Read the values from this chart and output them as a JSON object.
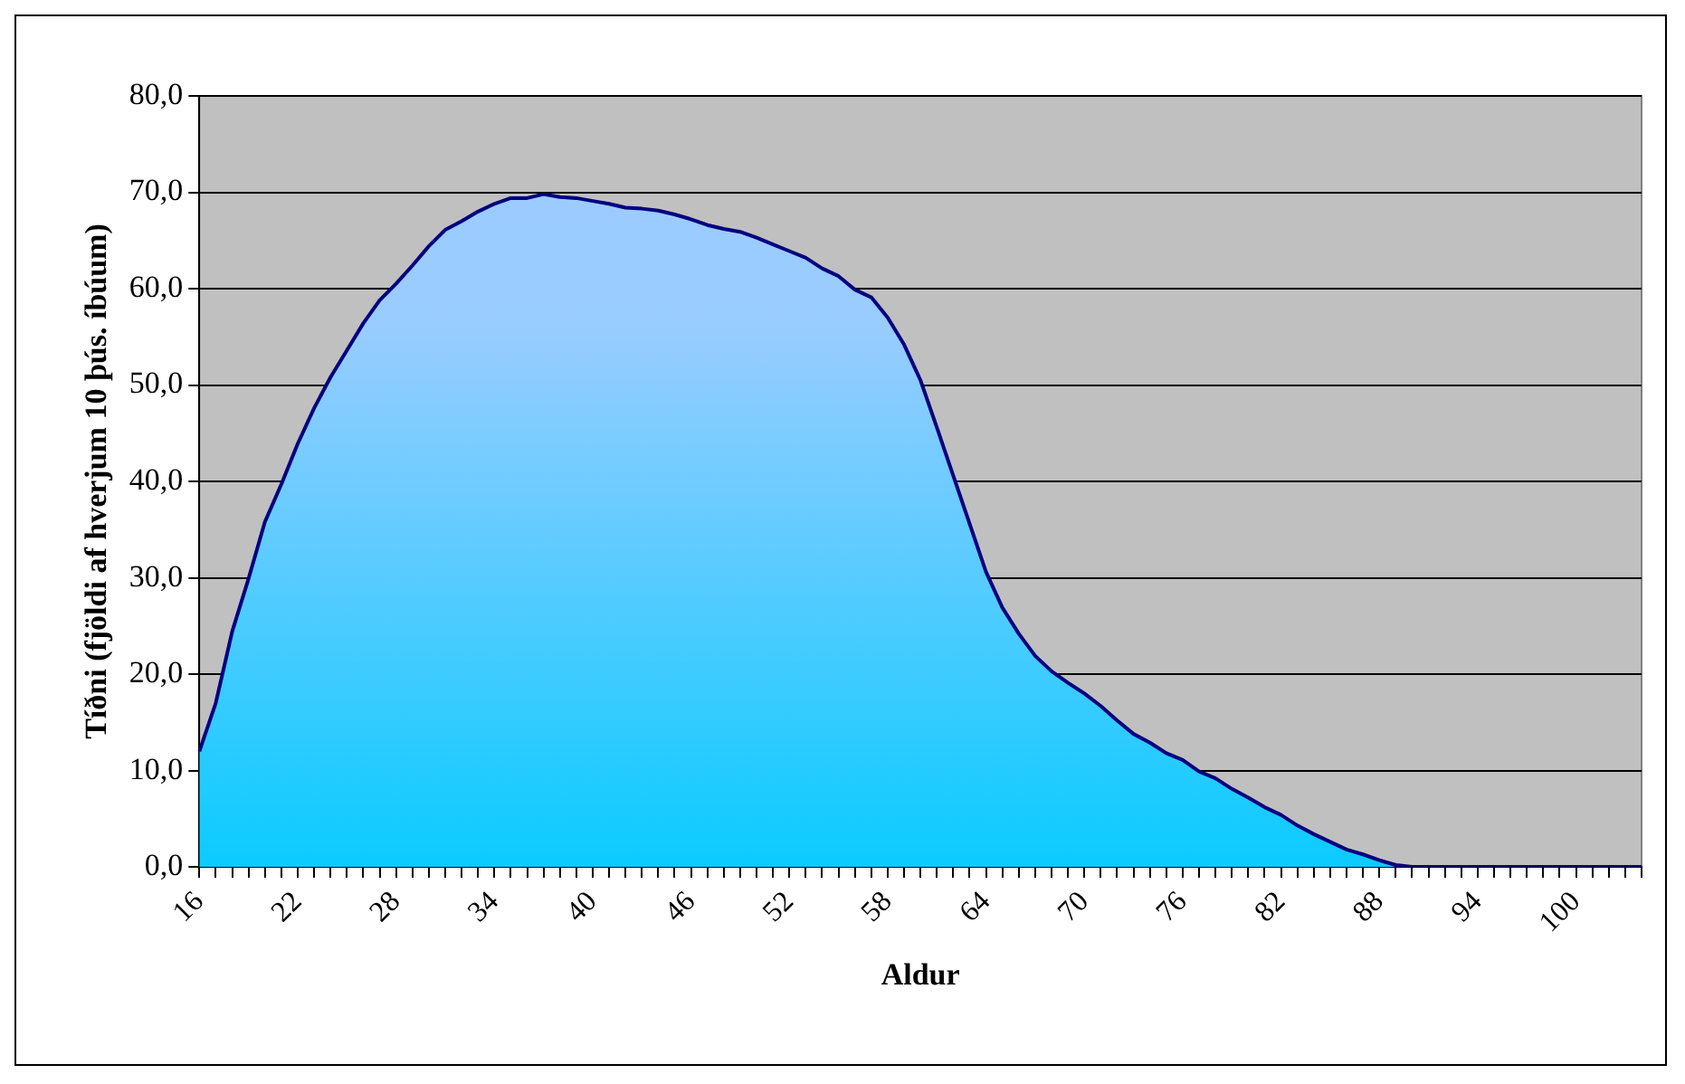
{
  "chart_data": {
    "type": "area",
    "xlabel": "Aldur",
    "ylabel": "Tíðni (fjöldi af hverjum 10 þús. íbúum)",
    "categories": [
      "16",
      null,
      null,
      null,
      null,
      null,
      "22",
      null,
      null,
      null,
      null,
      null,
      "28",
      null,
      null,
      null,
      null,
      null,
      "34",
      null,
      null,
      null,
      null,
      null,
      "40",
      null,
      null,
      null,
      null,
      null,
      "46",
      null,
      null,
      null,
      null,
      null,
      "52",
      null,
      null,
      null,
      null,
      null,
      "58",
      null,
      null,
      null,
      null,
      null,
      "64",
      null,
      null,
      null,
      null,
      null,
      "70",
      null,
      null,
      null,
      null,
      null,
      "76",
      null,
      null,
      null,
      null,
      null,
      "82",
      null,
      null,
      null,
      null,
      null,
      "88",
      null,
      null,
      null,
      null,
      null,
      "94",
      null,
      null,
      null,
      null,
      null,
      "100",
      null,
      null,
      null,
      null
    ],
    "series": [
      {
        "color": "#000080",
        "values": [
          12.0,
          17.0,
          24.4,
          29.9,
          35.8,
          39.7,
          43.9,
          47.6,
          50.8,
          53.6,
          56.4,
          58.8,
          60.5,
          62.4,
          64.4,
          66.1,
          67.0,
          68.0,
          68.8,
          69.4,
          69.4,
          69.8,
          69.5,
          69.4,
          69.1,
          68.8,
          68.4,
          68.3,
          68.1,
          67.7,
          67.2,
          66.6,
          66.2,
          65.9,
          65.3,
          64.6,
          63.9,
          63.2,
          62.1,
          61.3,
          59.9,
          59.1,
          57.0,
          54.2,
          50.5,
          45.6,
          40.6,
          35.6,
          30.6,
          26.9,
          24.2,
          21.9,
          20.3,
          19.1,
          18.0,
          16.7,
          15.2,
          13.8,
          12.9,
          11.8,
          11.1,
          9.9,
          9.2,
          8.1,
          7.2,
          6.2,
          5.4,
          4.3,
          3.4,
          2.6,
          1.8,
          1.3,
          0.7,
          0.2,
          0,
          0,
          0,
          0,
          0,
          0,
          0,
          0,
          0,
          0,
          0,
          0,
          0,
          0,
          0
        ]
      }
    ],
    "ylim": [
      0,
      80
    ],
    "yticks": [
      {
        "value": 0,
        "label": "0,0"
      },
      {
        "value": 10,
        "label": "10,0"
      },
      {
        "value": 20,
        "label": "20,0"
      },
      {
        "value": 30,
        "label": "30,0"
      },
      {
        "value": 40,
        "label": "40,0"
      },
      {
        "value": 50,
        "label": "50,0"
      },
      {
        "value": 60,
        "label": "60,0"
      },
      {
        "value": 70,
        "label": "70,0"
      },
      {
        "value": 80,
        "label": "80,0"
      }
    ],
    "grid": "y",
    "legend": false
  }
}
